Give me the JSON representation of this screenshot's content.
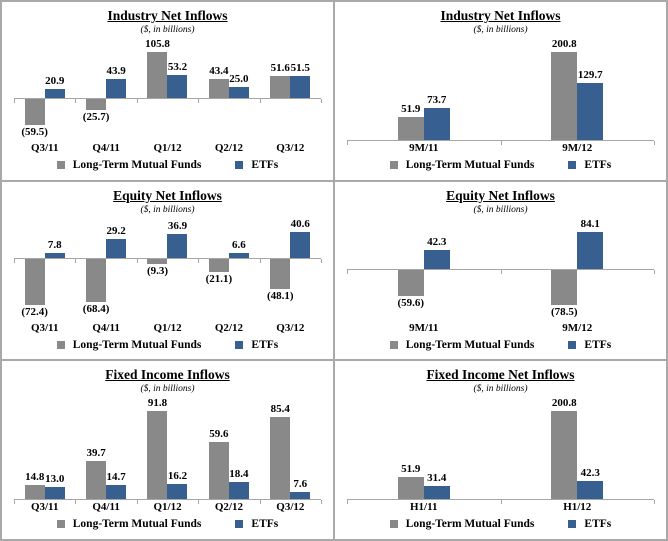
{
  "colors": {
    "mutual_funds": "#898989",
    "etfs": "#376091",
    "axis": "#a6a6a6",
    "panel_border": "#a9a9a9"
  },
  "legend": {
    "mutual_funds": "Long-Term Mutual Funds",
    "etfs": "ETFs"
  },
  "chart_data": [
    {
      "type": "bar",
      "panel": "industry-quarterly",
      "title": "Industry Net Inflows",
      "subtitle": "($, in billions)",
      "categories": [
        "Q3/11",
        "Q4/11",
        "Q1/12",
        "Q2/12",
        "Q3/12"
      ],
      "series": [
        {
          "name": "Long-Term Mutual Funds",
          "values": [
            -59.5,
            -25.7,
            105.8,
            43.4,
            51.6
          ]
        },
        {
          "name": "ETFs",
          "values": [
            20.9,
            43.9,
            53.2,
            25.0,
            51.5
          ]
        }
      ],
      "ylim": [
        -59.5,
        105.8
      ],
      "grid": false,
      "legend_position": "bottom",
      "negative_label_format": "parentheses"
    },
    {
      "type": "bar",
      "panel": "industry-ytd",
      "title": "Industry Net Inflows",
      "subtitle": "($, in billions)",
      "categories": [
        "9M/11",
        "9M/12"
      ],
      "series": [
        {
          "name": "Long-Term Mutual Funds",
          "values": [
            51.9,
            200.8
          ]
        },
        {
          "name": "ETFs",
          "values": [
            73.7,
            129.7
          ]
        }
      ],
      "ylim": [
        0,
        200.8
      ],
      "grid": false,
      "legend_position": "bottom",
      "negative_label_format": "parentheses"
    },
    {
      "type": "bar",
      "panel": "equity-quarterly",
      "title": "Equity Net Inflows",
      "subtitle": "($, in billions)",
      "categories": [
        "Q3/11",
        "Q4/11",
        "Q1/12",
        "Q2/12",
        "Q3/12"
      ],
      "series": [
        {
          "name": "Long-Term Mutual Funds",
          "values": [
            -72.4,
            -68.4,
            -9.3,
            -21.1,
            -48.1
          ]
        },
        {
          "name": "ETFs",
          "values": [
            7.8,
            29.2,
            36.9,
            6.6,
            40.6
          ]
        }
      ],
      "ylim": [
        -72.4,
        40.6
      ],
      "grid": false,
      "legend_position": "bottom",
      "negative_label_format": "parentheses"
    },
    {
      "type": "bar",
      "panel": "equity-ytd",
      "title": "Equity Net Inflows",
      "subtitle": "($, in billions)",
      "categories": [
        "9M/11",
        "9M/12"
      ],
      "series": [
        {
          "name": "Long-Term Mutual Funds",
          "values": [
            -59.6,
            -78.5
          ]
        },
        {
          "name": "ETFs",
          "values": [
            42.3,
            84.1
          ]
        }
      ],
      "ylim": [
        -78.5,
        84.1
      ],
      "grid": false,
      "legend_position": "bottom",
      "negative_label_format": "parentheses"
    },
    {
      "type": "bar",
      "panel": "fixed-income-quarterly",
      "title": "Fixed Income Inflows",
      "subtitle": "($, in billions)",
      "categories": [
        "Q3/11",
        "Q4/11",
        "Q1/12",
        "Q2/12",
        "Q3/12"
      ],
      "series": [
        {
          "name": "Long-Term Mutual Funds",
          "values": [
            14.8,
            39.7,
            91.8,
            59.6,
            85.4
          ]
        },
        {
          "name": "ETFs",
          "values": [
            13.0,
            14.7,
            16.2,
            18.4,
            7.6
          ]
        }
      ],
      "ylim": [
        0,
        91.8
      ],
      "grid": false,
      "legend_position": "bottom",
      "negative_label_format": "parentheses"
    },
    {
      "type": "bar",
      "panel": "fixed-income-ytd",
      "title": "Fixed Income Net Inflows",
      "subtitle": "($, in billions)",
      "categories": [
        "H1/11",
        "H1/12"
      ],
      "series": [
        {
          "name": "Long-Term Mutual Funds",
          "values": [
            51.9,
            200.8
          ]
        },
        {
          "name": "ETFs",
          "values": [
            31.4,
            42.3
          ]
        }
      ],
      "ylim": [
        0,
        200.8
      ],
      "grid": false,
      "legend_position": "bottom",
      "negative_label_format": "parentheses"
    }
  ]
}
